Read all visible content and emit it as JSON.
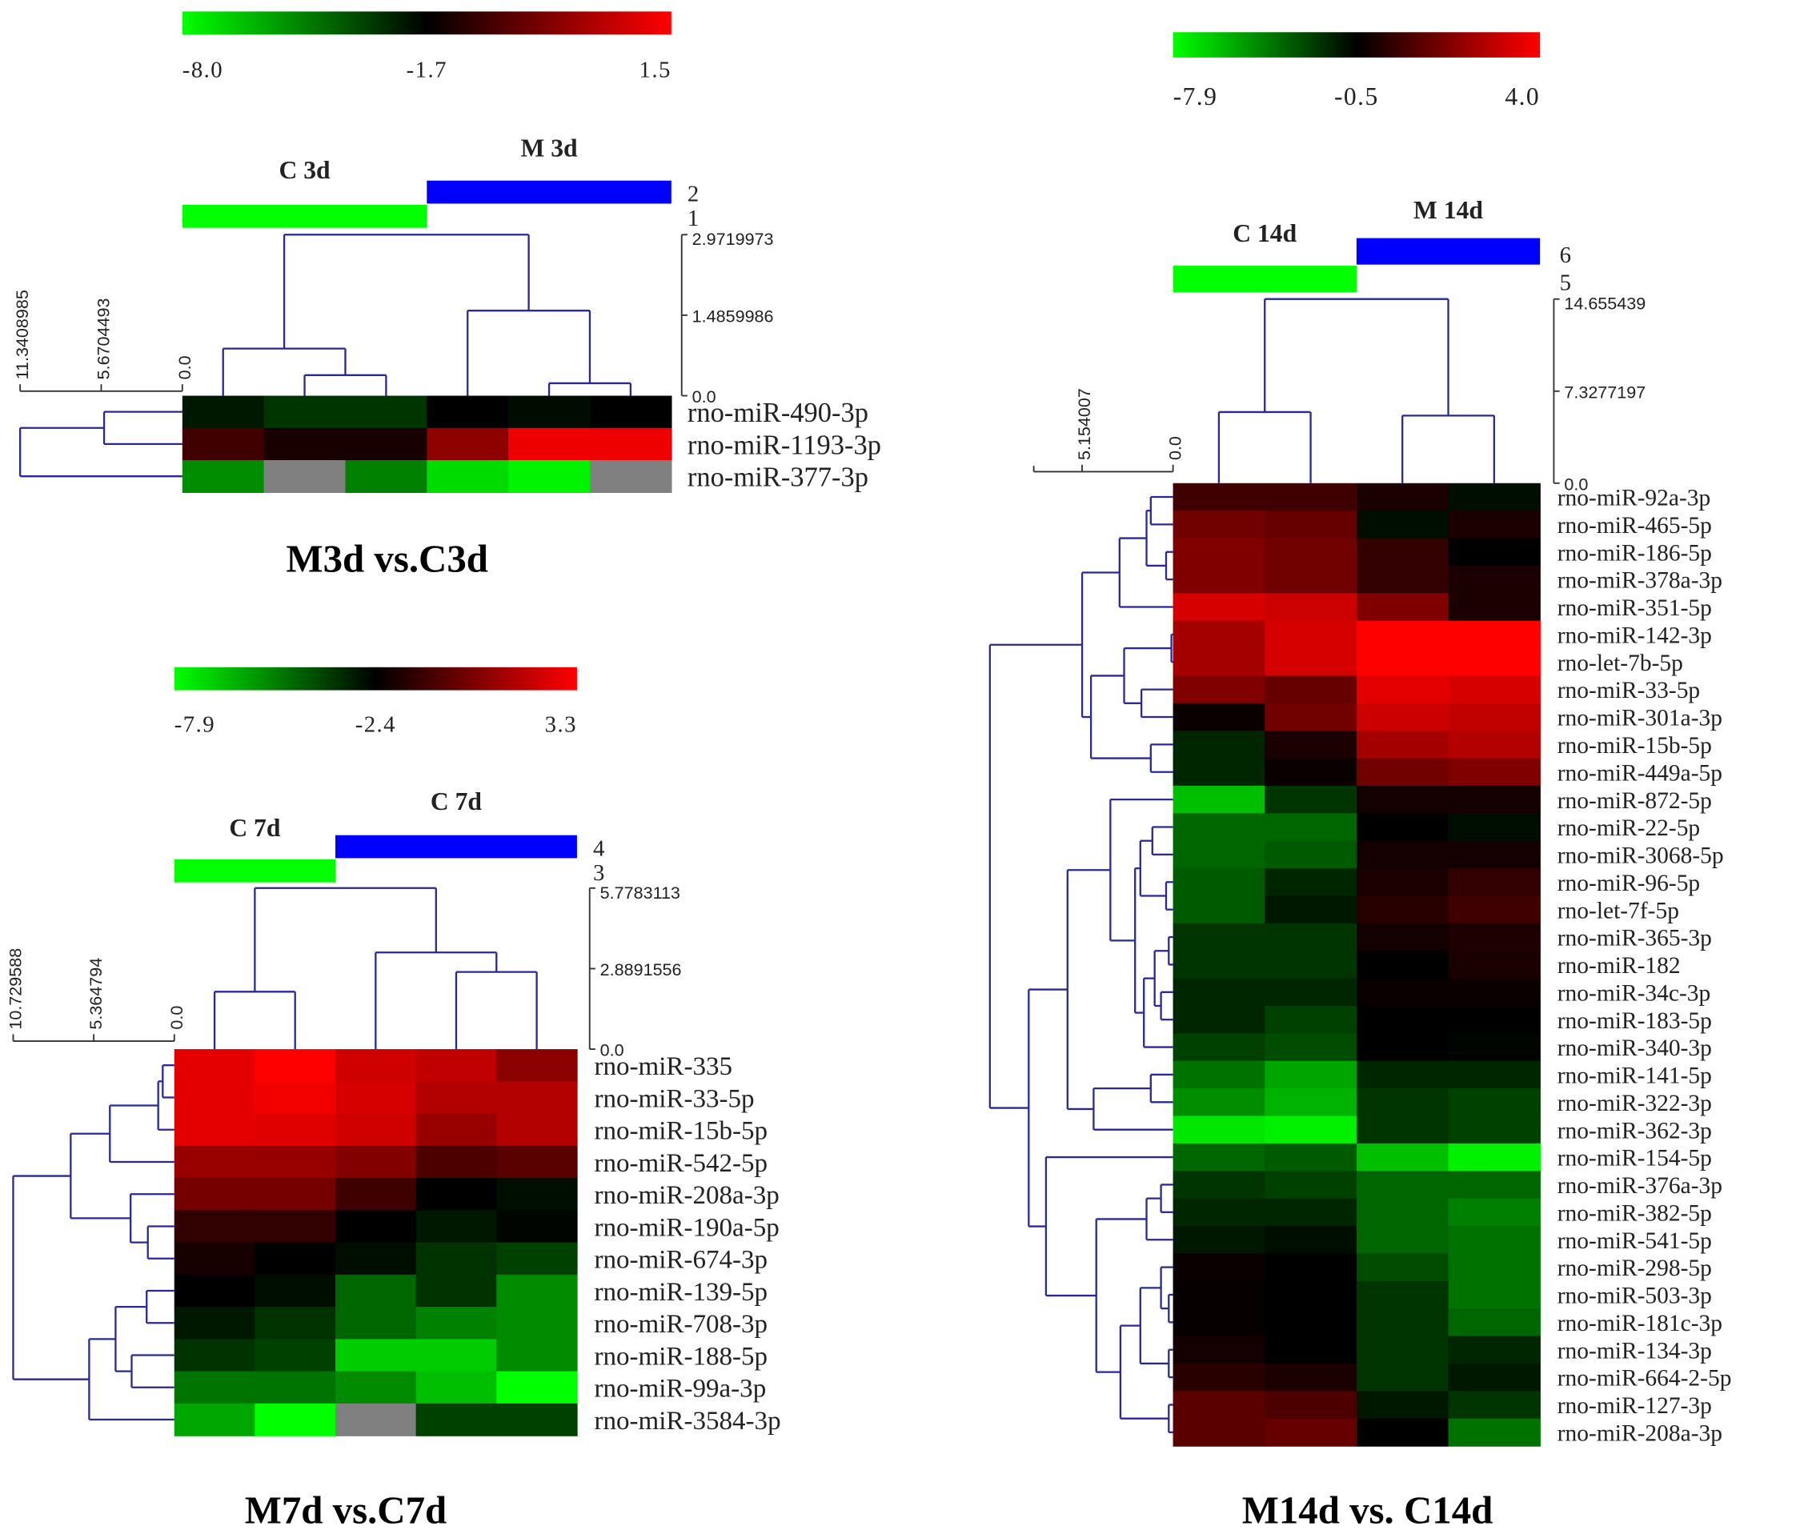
{
  "colors": {
    "low": "#00ff00",
    "mid": "#000000",
    "high": "#ff0000",
    "missing": "#808080",
    "dendrogram": "#28289a",
    "axis": "#333333"
  },
  "chart_data": [
    {
      "type": "heatmap",
      "title": "M3d vs.C3d",
      "colorbar": {
        "min": -8.0,
        "mid": -1.7,
        "max": 1.5,
        "labels": [
          "-8.0",
          "-1.7",
          "1.5"
        ]
      },
      "groups": [
        {
          "label": "C 3d",
          "color": "#00ff00",
          "number": "1",
          "columns": 3
        },
        {
          "label": "M 3d",
          "color": "#0000ff",
          "number": "2",
          "columns": 3
        }
      ],
      "rows": [
        "rno-miR-490-3p",
        "rno-miR-1193-3p",
        "rno-miR-377-3p"
      ],
      "values": [
        [
          -2.3,
          -3.0,
          -3.0,
          -1.7,
          -2.0,
          -1.7
        ],
        [
          -0.9,
          -1.4,
          -1.4,
          0.1,
          1.3,
          1.3
        ],
        [
          -5.2,
          null,
          -4.9,
          -7.1,
          -7.7,
          null
        ]
      ],
      "column_distance_ticks": [
        {
          "value": 2.9719973,
          "label": "2.9719973"
        },
        {
          "value": 1.4859986,
          "label": "1.4859986"
        },
        {
          "value": 0,
          "label": "0.0"
        }
      ],
      "row_distance_ticks": [
        {
          "value": 11.3408985,
          "label": "11.3408985"
        },
        {
          "value": 5.6704493,
          "label": "5.6704493"
        },
        {
          "value": 0,
          "label": "0.0"
        }
      ],
      "column_tree": {
        "h": 2.972,
        "c": [
          {
            "h": 0.87,
            "c": [
              0,
              {
                "h": 0.38,
                "c": [
                  1,
                  2
                ]
              }
            ]
          },
          {
            "h": 1.57,
            "c": [
              3,
              {
                "h": 0.23,
                "c": [
                  4,
                  5
                ]
              }
            ]
          }
        ]
      },
      "row_tree": {
        "h": 11.34,
        "c": [
          {
            "h": 5.47,
            "c": [
              0,
              1
            ]
          },
          2
        ]
      }
    },
    {
      "type": "heatmap",
      "title": "M7d vs.C7d",
      "colorbar": {
        "min": -7.9,
        "mid": -2.4,
        "max": 3.3,
        "labels": [
          "-7.9",
          "-2.4",
          "3.3"
        ]
      },
      "groups": [
        {
          "label": "C 7d",
          "color": "#00ff00",
          "number": "3",
          "columns": 2
        },
        {
          "label": "C 7d",
          "color": "#0000ff",
          "number": "4",
          "columns": 3
        }
      ],
      "rows": [
        "rno-miR-335",
        "rno-miR-33-5p",
        "rno-miR-15b-5p",
        "rno-miR-542-5p",
        "rno-miR-208a-3p",
        "rno-miR-190a-5p",
        "rno-miR-674-3p",
        "rno-miR-139-5p",
        "rno-miR-708-3p",
        "rno-miR-188-5p",
        "rno-miR-99a-3p",
        "rno-miR-3584-3p"
      ],
      "values": [
        [
          2.7,
          3.3,
          2.2,
          1.9,
          0.7
        ],
        [
          2.7,
          3.0,
          2.4,
          1.6,
          1.6
        ],
        [
          2.7,
          2.6,
          2.2,
          1.0,
          1.6
        ],
        [
          1.0,
          1.0,
          0.5,
          -0.7,
          -0.4
        ],
        [
          0.2,
          0.2,
          -1.0,
          -2.4,
          -2.7
        ],
        [
          -1.3,
          -1.3,
          -2.4,
          -2.9,
          -2.5
        ],
        [
          -1.9,
          -2.4,
          -2.7,
          -3.5,
          -3.8
        ],
        [
          -2.4,
          -2.7,
          -4.6,
          -3.5,
          -5.4
        ],
        [
          -2.9,
          -3.5,
          -4.6,
          -5.2,
          -5.4
        ],
        [
          -3.5,
          -3.8,
          -6.8,
          -6.8,
          -5.4
        ],
        [
          -4.9,
          -4.9,
          -5.4,
          -6.5,
          -7.9
        ],
        [
          -6.0,
          -7.9,
          null,
          -3.8,
          -3.8
        ]
      ],
      "column_distance_ticks": [
        {
          "value": 5.7783113,
          "label": "5.7783113"
        },
        {
          "value": 2.8891556,
          "label": "2.8891556"
        },
        {
          "value": 0,
          "label": "0.0"
        }
      ],
      "row_distance_ticks": [
        {
          "value": 10.729588,
          "label": "10.729588"
        },
        {
          "value": 5.364794,
          "label": "5.364794"
        },
        {
          "value": 0,
          "label": "0.0"
        }
      ],
      "column_tree": {
        "h": 5.78,
        "c": [
          {
            "h": 2.06,
            "c": [
              0,
              1
            ]
          },
          {
            "h": 3.47,
            "c": [
              2,
              {
                "h": 2.77,
                "c": [
                  3,
                  4
                ]
              }
            ]
          }
        ]
      },
      "row_tree": {
        "h": 10.73,
        "c": [
          {
            "h": 6.9,
            "c": [
              {
                "h": 4.29,
                "c": [
                  {
                    "h": 1.07,
                    "c": [
                      {
                        "h": 0.77,
                        "c": [
                          0,
                          1
                        ]
                      },
                      2
                    ]
                  },
                  3
                ]
              },
              {
                "h": 2.91,
                "c": [
                  4,
                  {
                    "h": 1.76,
                    "c": [
                      5,
                      6
                    ]
                  }
                ]
              }
            ]
          },
          {
            "h": 5.67,
            "c": [
              {
                "h": 3.91,
                "c": [
                  {
                    "h": 1.84,
                    "c": [
                      7,
                      8
                    ]
                  },
                  {
                    "h": 2.84,
                    "c": [
                      9,
                      10
                    ]
                  }
                ]
              },
              11
            ]
          }
        ]
      }
    },
    {
      "type": "heatmap",
      "title": "M14d vs. C14d",
      "colorbar": {
        "min": -7.9,
        "mid": -0.5,
        "max": 4.0,
        "labels": [
          "-7.9",
          "-0.5",
          "4.0"
        ]
      },
      "groups": [
        {
          "label": "C 14d",
          "color": "#00ff00",
          "number": "5",
          "columns": 2
        },
        {
          "label": "M 14d",
          "color": "#0000ff",
          "number": "6",
          "columns": 2
        }
      ],
      "rows": [
        "rno-miR-92a-3p",
        "rno-miR-465-5p",
        "rno-miR-186-5p",
        "rno-miR-378a-3p",
        "rno-miR-351-5p",
        "rno-miR-142-3p",
        "rno-let-7b-5p",
        "rno-miR-33-5p",
        "rno-miR-301a-3p",
        "rno-miR-15b-5p",
        "rno-miR-449a-5p",
        "rno-miR-872-5p",
        "rno-miR-22-5p",
        "rno-miR-3068-5p",
        "rno-miR-96-5p",
        "rno-let-7f-5p",
        "rno-miR-365-3p",
        "rno-miR-182",
        "rno-miR-34c-3p",
        "rno-miR-183-5p",
        "rno-miR-340-3p",
        "rno-miR-141-5p",
        "rno-miR-322-3p",
        "rno-miR-362-3p",
        "rno-miR-154-5p",
        "rno-miR-376a-3p",
        "rno-miR-382-5p",
        "rno-miR-541-5p",
        "rno-miR-298-5p",
        "rno-miR-503-3p",
        "rno-miR-181c-3p",
        "rno-miR-134-3p",
        "rno-miR-664-2-5p",
        "rno-miR-127-3p",
        "rno-miR-208a-3p"
      ],
      "values": [
        [
          0.6,
          0.6,
          -0.05,
          -0.9
        ],
        [
          1.5,
          1.3,
          -0.9,
          -0.05
        ],
        [
          1.75,
          1.5,
          0.4,
          -0.5
        ],
        [
          1.75,
          1.5,
          0.4,
          -0.05
        ],
        [
          3.3,
          3.1,
          1.75,
          -0.05
        ],
        [
          2.4,
          3.3,
          4.0,
          4.0
        ],
        [
          2.4,
          3.3,
          4.0,
          4.0
        ],
        [
          1.75,
          1.3,
          3.55,
          3.3
        ],
        [
          -0.3,
          1.5,
          3.1,
          2.9
        ],
        [
          -1.6,
          -0.05,
          2.4,
          2.65
        ],
        [
          -1.6,
          -0.3,
          1.5,
          1.75
        ],
        [
          -6.05,
          -2.0,
          -0.15,
          -0.15
        ],
        [
          -3.5,
          -3.5,
          -0.5,
          -0.9
        ],
        [
          -3.5,
          -3.1,
          -0.15,
          -0.15
        ],
        [
          -3.1,
          -1.6,
          -0.05,
          0.4
        ],
        [
          -3.1,
          -1.2,
          0.2,
          0.6
        ],
        [
          -2.0,
          -2.0,
          -0.15,
          0.05
        ],
        [
          -2.0,
          -2.0,
          -0.5,
          -0.05
        ],
        [
          -1.6,
          -1.6,
          -0.3,
          -0.3
        ],
        [
          -1.6,
          -2.4,
          -0.5,
          -0.5
        ],
        [
          -2.4,
          -2.7,
          -0.5,
          -0.65
        ],
        [
          -3.8,
          -5.3,
          -1.6,
          -1.6
        ],
        [
          -4.6,
          -5.7,
          -2.0,
          -2.4
        ],
        [
          -7.2,
          -7.5,
          -2.0,
          -2.4
        ],
        [
          -3.5,
          -3.1,
          -6.05,
          -7.5
        ],
        [
          -2.0,
          -2.4,
          -3.5,
          -3.5
        ],
        [
          -1.6,
          -1.6,
          -3.5,
          -4.2
        ],
        [
          -1.2,
          -0.9,
          -3.5,
          -3.8
        ],
        [
          -0.3,
          -0.5,
          -2.7,
          -3.8
        ],
        [
          -0.4,
          -0.5,
          -2.0,
          -3.8
        ],
        [
          -0.4,
          -0.5,
          -2.0,
          -3.5
        ],
        [
          -0.15,
          -0.5,
          -2.0,
          -1.6
        ],
        [
          0.2,
          -0.05,
          -2.0,
          -1.2
        ],
        [
          1.1,
          0.85,
          -1.2,
          -2.0
        ],
        [
          1.1,
          1.3,
          -0.5,
          -3.8
        ]
      ],
      "column_distance_ticks": [
        {
          "value": 14.655439,
          "label": "14.655439"
        },
        {
          "value": 7.3277197,
          "label": "7.3277197"
        },
        {
          "value": 0,
          "label": "0.0"
        }
      ],
      "row_distance_ticks": [
        {
          "value": 5.154007,
          "label": "5.154007"
        },
        {
          "value": 0,
          "label": "0.0"
        }
      ],
      "column_tree": {
        "h": 14.66,
        "c": [
          {
            "h": 5.66,
            "c": [
              0,
              1
            ]
          },
          {
            "h": 5.38,
            "c": [
              2,
              3
            ]
          }
        ]
      },
      "row_tree": {
        "h": 10.38,
        "c": [
          {
            "h": 5.15,
            "c": [
              {
                "h": 3.03,
                "c": [
                  {
                    "h": 1.5,
                    "c": [
                      {
                        "h": 1.26,
                        "c": [
                          0,
                          1
                        ]
                      },
                      {
                        "h": 0.39,
                        "c": [
                          2,
                          3
                        ]
                      }
                    ]
                  },
                  4
                ]
              },
              {
                "h": 4.65,
                "c": [
                  {
                    "h": 2.77,
                    "c": [
                      {
                        "h": 0.09,
                        "c": [
                          5,
                          6
                        ]
                      },
                      {
                        "h": 1.79,
                        "c": [
                          7,
                          8
                        ]
                      }
                    ]
                  },
                  {
                    "h": 1.26,
                    "c": [
                      9,
                      10
                    ]
                  }
                ]
              }
            ]
          },
          {
            "h": 8.18,
            "c": [
              {
                "h": 5.98,
                "c": [
                  {
                    "h": 3.55,
                    "c": [
                      11,
                      {
                        "h": 2.15,
                        "c": [
                          {
                            "h": 1.85,
                            "c": [
                              {
                                "h": 1.17,
                                "c": [
                                  12,
                                  13
                                ]
                              },
                              {
                                "h": 0.39,
                                "c": [
                                  14,
                                  15
                                ]
                              }
                            ]
                          },
                          {
                            "h": 1.65,
                            "c": [
                              {
                                "h": 1.04,
                                "c": [
                                  {
                                    "h": 0.24,
                                    "c": [
                                      16,
                                      17
                                    ]
                                  },
                                  {
                                    "h": 0.68,
                                    "c": [
                                      18,
                                      19
                                    ]
                                  }
                                ]
                              },
                              20
                            ]
                          }
                        ]
                      }
                    ]
                  },
                  {
                    "h": 4.5,
                    "c": [
                      {
                        "h": 1.26,
                        "c": [
                          21,
                          22
                        ]
                      },
                      23
                    ]
                  }
                ]
              },
              {
                "h": 7.2,
                "c": [
                  24,
                  {
                    "h": 4.35,
                    "c": [
                      {
                        "h": 1.5,
                        "c": [
                          {
                            "h": 0.68,
                            "c": [
                              25,
                              26
                            ]
                          },
                          27
                        ]
                      },
                      {
                        "h": 2.98,
                        "c": [
                          {
                            "h": 1.85,
                            "c": [
                              {
                                "h": 0.68,
                                "c": [
                                  28,
                                  {
                                    "h": 0.24,
                                    "c": [
                                      29,
                                      30
                                    ]
                                  }
                                ]
                              },
                              {
                                "h": 0.24,
                                "c": [
                                  31,
                                  32
                                ]
                              }
                            ]
                          },
                          {
                            "h": 0.24,
                            "c": [
                              33,
                              34
                            ]
                          }
                        ]
                      }
                    ]
                  }
                ]
              }
            ]
          }
        ]
      }
    }
  ]
}
